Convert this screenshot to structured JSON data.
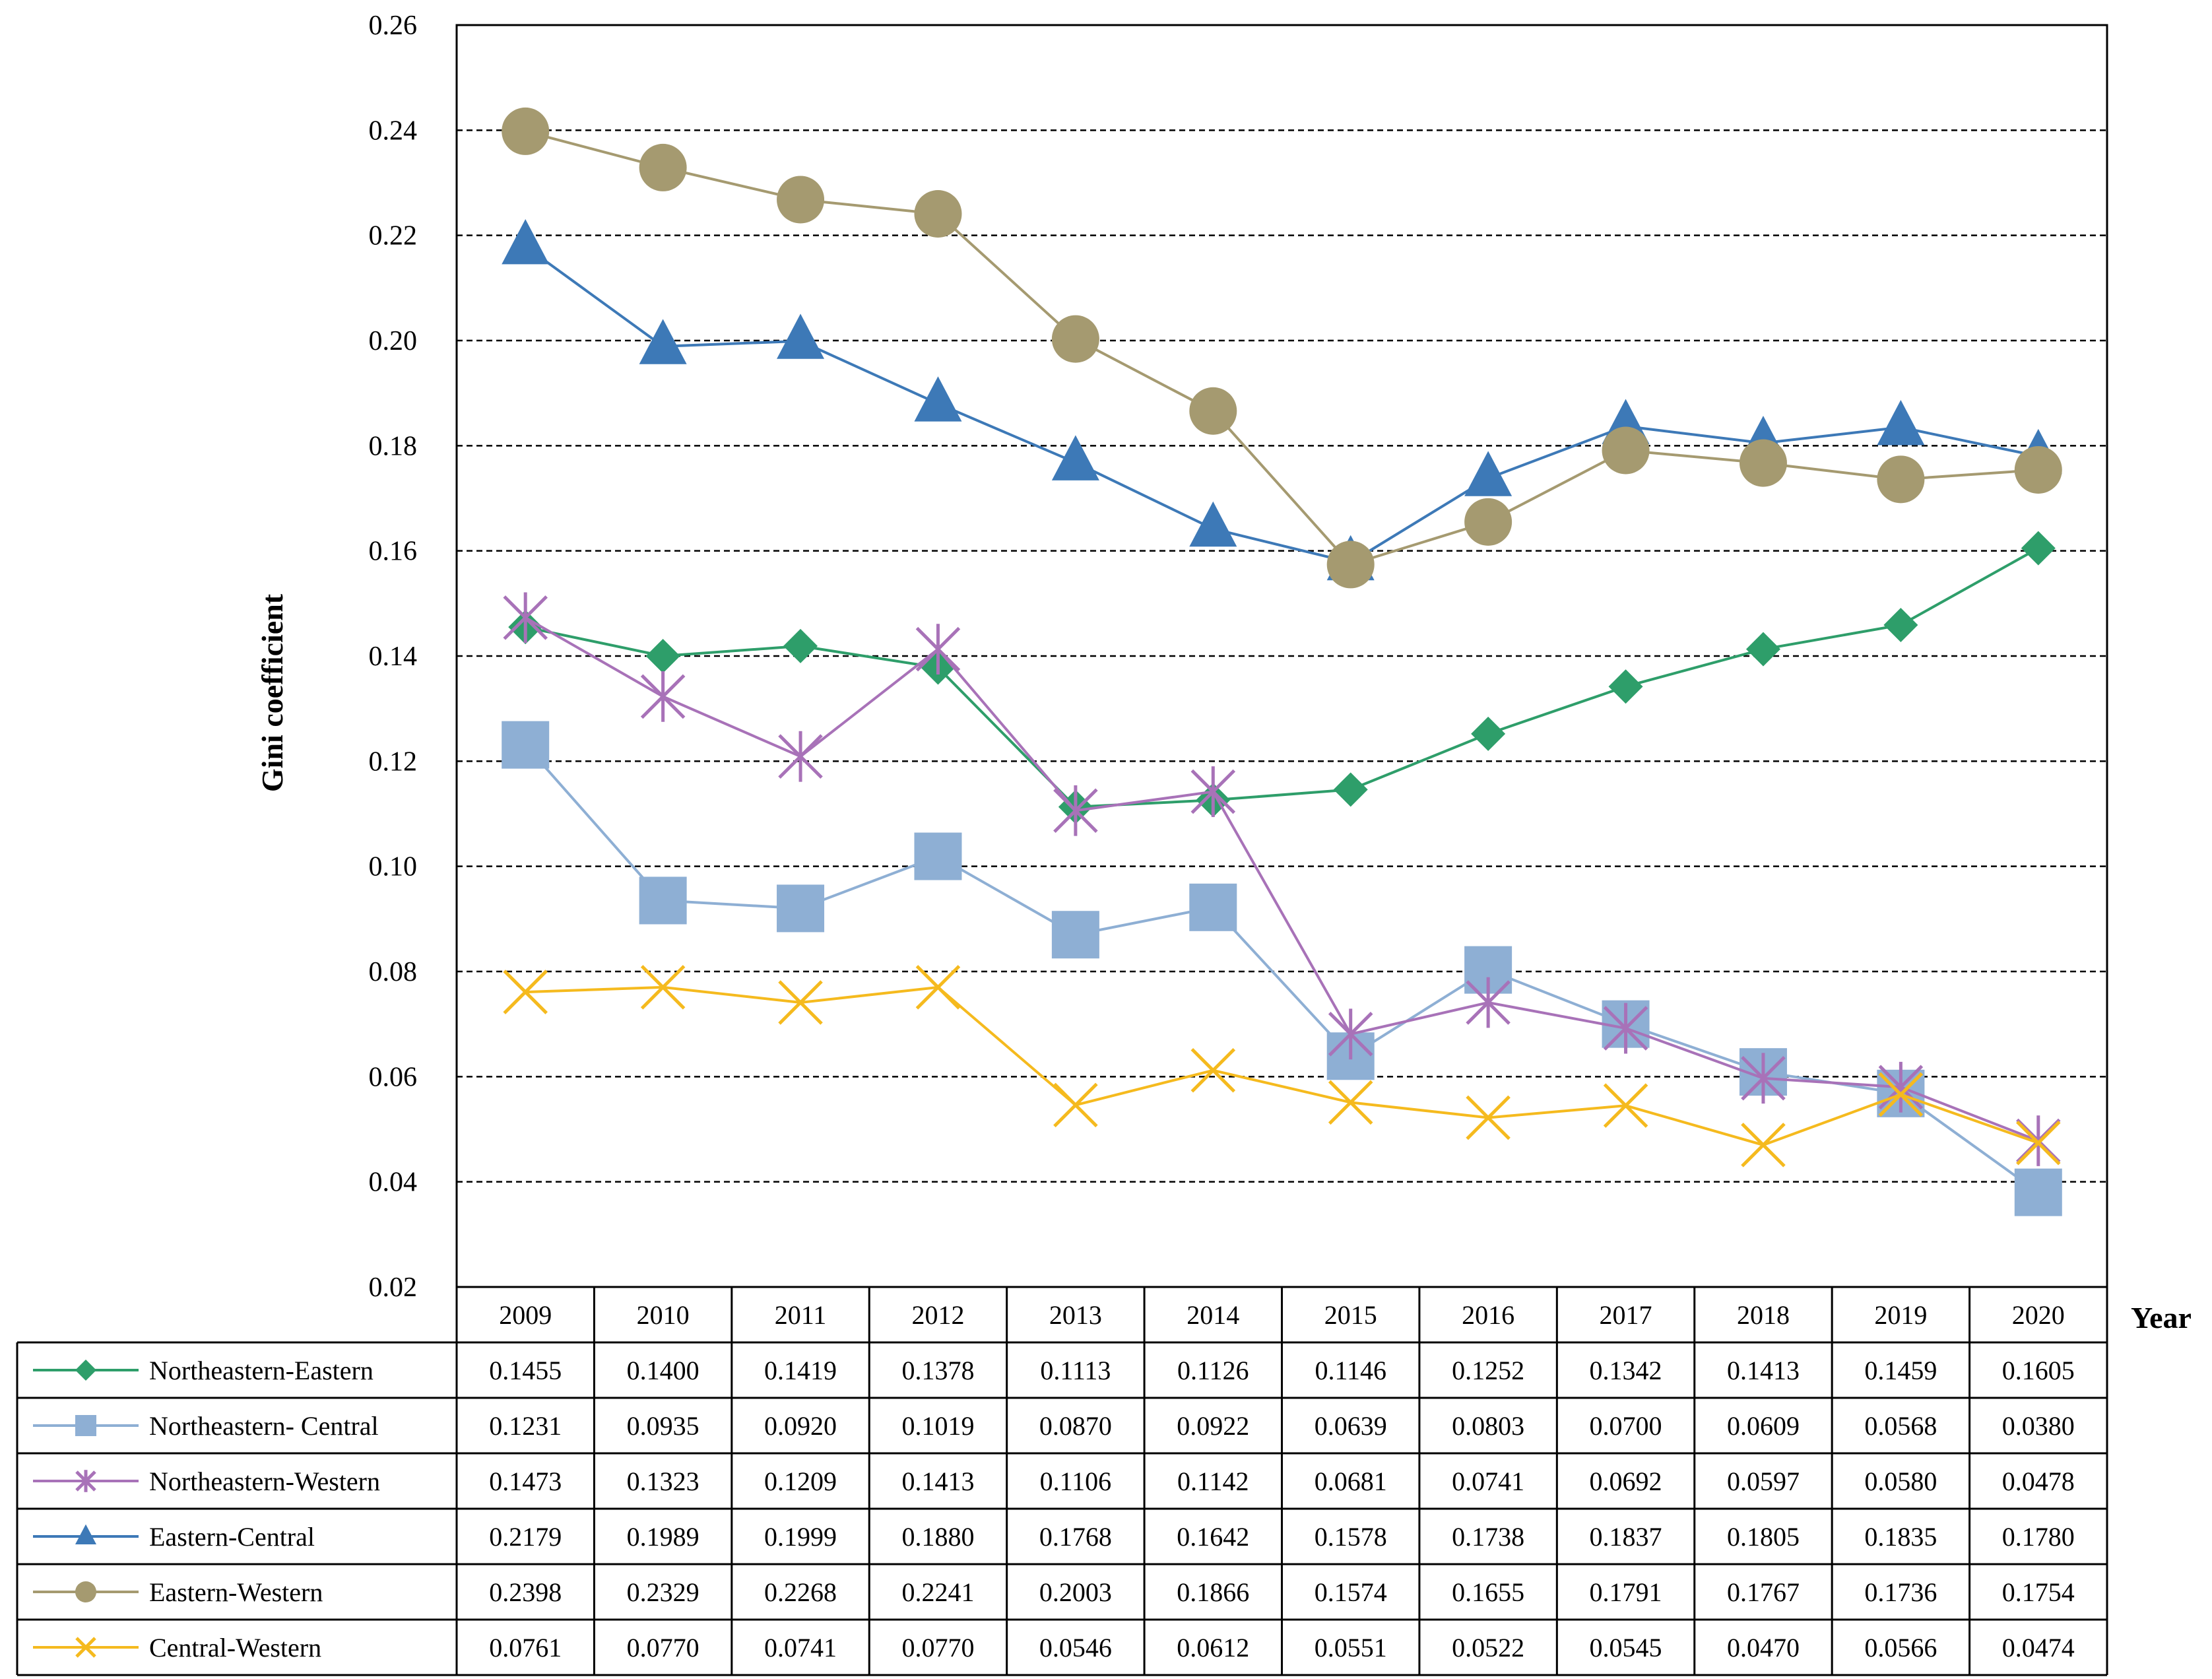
{
  "chart_data": {
    "type": "line",
    "title": "",
    "xlabel": "Year",
    "ylabel": "Gini coefficient",
    "ylim": [
      0.02,
      0.26
    ],
    "yticks": [
      "0.02",
      "0.04",
      "0.06",
      "0.08",
      "0.10",
      "0.12",
      "0.14",
      "0.16",
      "0.18",
      "0.20",
      "0.22",
      "0.24",
      "0.26"
    ],
    "grid": "horizontal-dashed",
    "categories": [
      "2009",
      "2010",
      "2011",
      "2012",
      "2013",
      "2014",
      "2015",
      "2016",
      "2017",
      "2018",
      "2019",
      "2020"
    ],
    "series": [
      {
        "name": "Northeastern-Eastern",
        "marker": "diamond",
        "color": "#2E9E6A",
        "values": [
          0.1455,
          0.14,
          0.1419,
          0.1378,
          0.1113,
          0.1126,
          0.1146,
          0.1252,
          0.1342,
          0.1413,
          0.1459,
          0.1605
        ],
        "labels": [
          "0.1455",
          "0.1400",
          "0.1419",
          "0.1378",
          "0.1113",
          "0.1126",
          "0.1146",
          "0.1252",
          "0.1342",
          "0.1413",
          "0.1459",
          "0.1605"
        ]
      },
      {
        "name": "Northeastern- Central",
        "marker": "square",
        "color": "#8EAFD4",
        "values": [
          0.1231,
          0.0935,
          0.092,
          0.1019,
          0.087,
          0.0922,
          0.0639,
          0.0803,
          0.07,
          0.0609,
          0.0568,
          0.038
        ],
        "labels": [
          "0.1231",
          "0.0935",
          "0.0920",
          "0.1019",
          "0.0870",
          "0.0922",
          "0.0639",
          "0.0803",
          "0.0700",
          "0.0609",
          "0.0568",
          "0.0380"
        ]
      },
      {
        "name": "Northeastern-Western",
        "marker": "asterisk",
        "color": "#A872B8",
        "values": [
          0.1473,
          0.1323,
          0.1209,
          0.1413,
          0.1106,
          0.1142,
          0.0681,
          0.0741,
          0.0692,
          0.0597,
          0.058,
          0.0478
        ],
        "labels": [
          "0.1473",
          "0.1323",
          "0.1209",
          "0.1413",
          "0.1106",
          "0.1142",
          "0.0681",
          "0.0741",
          "0.0692",
          "0.0597",
          "0.0580",
          "0.0478"
        ]
      },
      {
        "name": "Eastern-Central",
        "marker": "triangle",
        "color": "#3D79B7",
        "values": [
          0.2179,
          0.1989,
          0.1999,
          0.188,
          0.1768,
          0.1642,
          0.1578,
          0.1738,
          0.1837,
          0.1805,
          0.1835,
          0.178
        ],
        "labels": [
          "0.2179",
          "0.1989",
          "0.1999",
          "0.1880",
          "0.1768",
          "0.1642",
          "0.1578",
          "0.1738",
          "0.1837",
          "0.1805",
          "0.1835",
          "0.1780"
        ]
      },
      {
        "name": "Eastern-Western",
        "marker": "circle",
        "color": "#A59A70",
        "values": [
          0.2398,
          0.2329,
          0.2268,
          0.2241,
          0.2003,
          0.1866,
          0.1574,
          0.1655,
          0.1791,
          0.1767,
          0.1736,
          0.1754
        ],
        "labels": [
          "0.2398",
          "0.2329",
          "0.2268",
          "0.2241",
          "0.2003",
          "0.1866",
          "0.1574",
          "0.1655",
          "0.1791",
          "0.1767",
          "0.1736",
          "0.1754"
        ]
      },
      {
        "name": "Central-Western",
        "marker": "x",
        "color": "#F5BA1E",
        "values": [
          0.0761,
          0.077,
          0.0741,
          0.077,
          0.0546,
          0.0612,
          0.0551,
          0.0522,
          0.0545,
          0.047,
          0.0566,
          0.0474
        ],
        "labels": [
          "0.0761",
          "0.0770",
          "0.0741",
          "0.0770",
          "0.0546",
          "0.0612",
          "0.0551",
          "0.0522",
          "0.0545",
          "0.0470",
          "0.0566",
          "0.0474"
        ]
      }
    ]
  }
}
